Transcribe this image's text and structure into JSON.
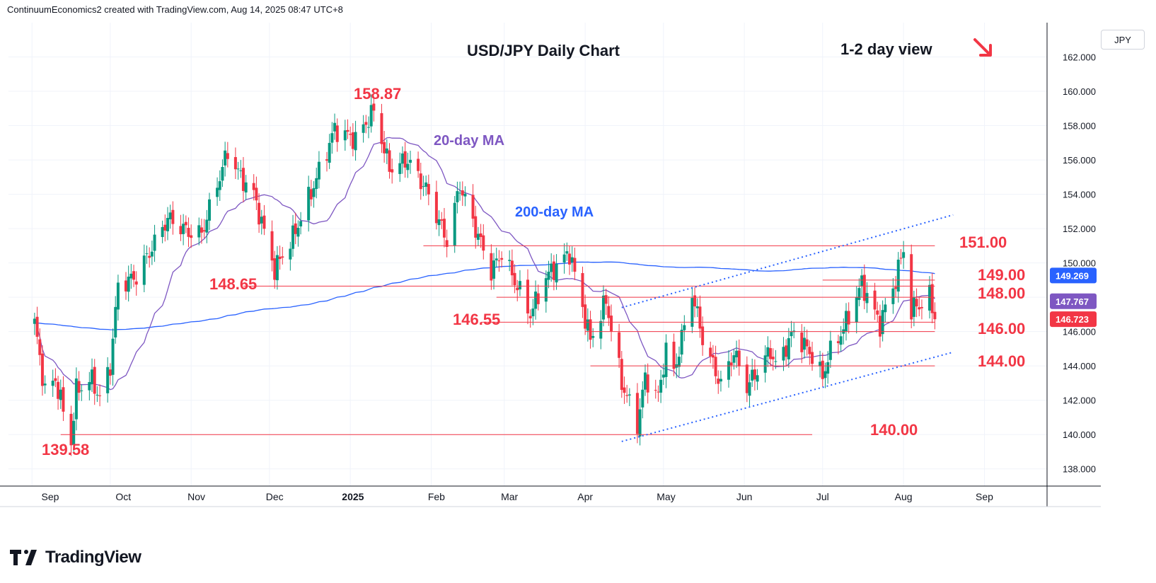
{
  "header": {
    "text": "ContinuumEconomics2 created with TradingView.com, Aug 14, 2025 08:47 UTC+8"
  },
  "brand": {
    "name": "TradingView"
  },
  "currency": "JPY",
  "colors": {
    "up": "#089981",
    "down": "#f23645",
    "ma20": "#7e57c2",
    "ma200": "#2962ff",
    "level": "#f23645",
    "label": "#f23645",
    "channel": "#2962ff",
    "lastPrice": "#f23645",
    "ma200Tag": "#2962ff"
  },
  "annotations": {
    "title": "USD/JPY Daily Chart",
    "view": "1-2 day view",
    "arrow_icon": "arrow-down-right-icon",
    "ma20": "20-day MA",
    "ma200": "200-day MA",
    "high": "158.87",
    "low": "139.58",
    "l148_65": "148.65",
    "l146_55": "146.55",
    "l151": "151.00",
    "l149": "149.00",
    "l148": "148.00",
    "l146": "146.00",
    "l144": "144.00",
    "l140": "140.00"
  },
  "chart_data": {
    "type": "candlestick",
    "title": "USD/JPY Daily Chart",
    "ylim": [
      137,
      164
    ],
    "y_ticks": [
      "162.000",
      "160.000",
      "158.000",
      "156.000",
      "154.000",
      "152.000",
      "150.000",
      "148.000",
      "146.000",
      "144.000",
      "142.000",
      "140.000",
      "138.000"
    ],
    "x_ticks": [
      "Sep",
      "Oct",
      "Nov",
      "Dec",
      "2025",
      "Feb",
      "Mar",
      "Apr",
      "May",
      "Jun",
      "Jul",
      "Aug",
      "Sep"
    ],
    "last_price": "146.723",
    "price_tags": [
      "149.269",
      "147.767"
    ],
    "horizontal_levels": [
      {
        "price": 151.0,
        "from": "2025-01-29",
        "to": "2025-08-13",
        "label": "151.00"
      },
      {
        "price": 149.0,
        "from": "2025-07-01",
        "to": "2025-08-13",
        "label": "149.00"
      },
      {
        "price": 148.65,
        "from": "2024-11-21",
        "to": "2025-08-13",
        "label": "148.65"
      },
      {
        "price": 148.0,
        "from": "2025-02-26",
        "to": "2025-08-13",
        "label": "148.00"
      },
      {
        "price": 146.55,
        "from": "2025-02-20",
        "to": "2025-08-13",
        "label": "146.55"
      },
      {
        "price": 146.0,
        "from": "2025-04-01",
        "to": "2025-08-13",
        "label": "146.00"
      },
      {
        "price": 144.0,
        "from": "2025-04-03",
        "to": "2025-08-13",
        "label": "144.00"
      },
      {
        "price": 140.0,
        "from": "2024-09-12",
        "to": "2025-06-27",
        "label": "140.00"
      }
    ],
    "channel_lower": [
      {
        "date": "2025-04-15",
        "price": 139.6
      },
      {
        "date": "2025-08-20",
        "price": 144.8
      }
    ],
    "channel_upper": [
      {
        "date": "2025-04-15",
        "price": 147.4
      },
      {
        "date": "2025-08-20",
        "price": 152.8
      }
    ],
    "pivots": [
      {
        "date": "2024-09-02",
        "price": 146.5
      },
      {
        "date": "2024-09-06",
        "price": 142.5
      },
      {
        "date": "2024-09-10",
        "price": 143.2
      },
      {
        "date": "2024-09-16",
        "price": 139.58
      },
      {
        "date": "2024-09-18",
        "price": 142.6
      },
      {
        "date": "2024-09-24",
        "price": 143.2
      },
      {
        "date": "2024-09-27",
        "price": 142.1
      },
      {
        "date": "2024-10-01",
        "price": 144.0
      },
      {
        "date": "2024-10-04",
        "price": 148.7
      },
      {
        "date": "2024-10-11",
        "price": 149.2
      },
      {
        "date": "2024-10-23",
        "price": 152.6
      },
      {
        "date": "2024-10-31",
        "price": 151.8
      },
      {
        "date": "2024-11-05",
        "price": 151.7
      },
      {
        "date": "2024-11-15",
        "price": 156.5
      },
      {
        "date": "2024-11-20",
        "price": 155.0
      },
      {
        "date": "2024-11-25",
        "price": 154.0
      },
      {
        "date": "2024-12-03",
        "price": 149.6
      },
      {
        "date": "2024-12-05",
        "price": 150.2
      },
      {
        "date": "2024-12-10",
        "price": 151.5
      },
      {
        "date": "2024-12-18",
        "price": 154.5
      },
      {
        "date": "2024-12-26",
        "price": 157.8
      },
      {
        "date": "2025-01-03",
        "price": 157.2
      },
      {
        "date": "2025-01-10",
        "price": 158.87
      },
      {
        "date": "2025-01-16",
        "price": 155.5
      },
      {
        "date": "2025-01-23",
        "price": 156.0
      },
      {
        "date": "2025-01-30",
        "price": 154.3
      },
      {
        "date": "2025-02-07",
        "price": 151.3
      },
      {
        "date": "2025-02-12",
        "price": 154.5
      },
      {
        "date": "2025-02-24",
        "price": 149.5
      },
      {
        "date": "2025-02-28",
        "price": 150.6
      },
      {
        "date": "2025-03-11",
        "price": 147.0
      },
      {
        "date": "2025-03-17",
        "price": 149.2
      },
      {
        "date": "2025-03-26",
        "price": 150.6
      },
      {
        "date": "2025-04-03",
        "price": 145.5
      },
      {
        "date": "2025-04-09",
        "price": 147.8
      },
      {
        "date": "2025-04-15",
        "price": 143.0
      },
      {
        "date": "2025-04-21",
        "price": 140.6
      },
      {
        "date": "2025-04-24",
        "price": 143.3
      },
      {
        "date": "2025-04-29",
        "price": 142.2
      },
      {
        "date": "2025-05-02",
        "price": 145.0
      },
      {
        "date": "2025-05-05",
        "price": 143.6
      },
      {
        "date": "2025-05-12",
        "price": 148.3
      },
      {
        "date": "2025-05-16",
        "price": 145.6
      },
      {
        "date": "2025-05-23",
        "price": 142.9
      },
      {
        "date": "2025-05-28",
        "price": 144.8
      },
      {
        "date": "2025-06-02",
        "price": 142.8
      },
      {
        "date": "2025-06-11",
        "price": 144.9
      },
      {
        "date": "2025-06-13",
        "price": 144.0
      },
      {
        "date": "2025-06-20",
        "price": 146.0
      },
      {
        "date": "2025-06-27",
        "price": 144.6
      },
      {
        "date": "2025-07-01",
        "price": 143.3
      },
      {
        "date": "2025-07-03",
        "price": 144.5
      },
      {
        "date": "2025-07-09",
        "price": 146.2
      },
      {
        "date": "2025-07-16",
        "price": 148.8
      },
      {
        "date": "2025-07-23",
        "price": 146.4
      },
      {
        "date": "2025-07-25",
        "price": 147.4
      },
      {
        "date": "2025-07-28",
        "price": 148.5
      },
      {
        "date": "2025-08-01",
        "price": 150.8
      },
      {
        "date": "2025-08-04",
        "price": 147.1
      },
      {
        "date": "2025-08-06",
        "price": 147.6
      },
      {
        "date": "2025-08-08",
        "price": 147.5
      },
      {
        "date": "2025-08-11",
        "price": 148.1
      },
      {
        "date": "2025-08-13",
        "price": 146.72
      }
    ]
  }
}
